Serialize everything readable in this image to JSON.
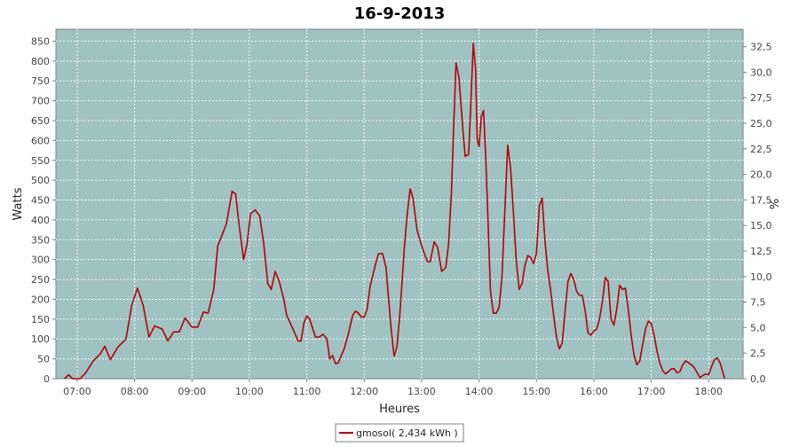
{
  "chart_data": {
    "type": "line",
    "title": "16-9-2013",
    "xlabel": "Heures",
    "ylabel": "Watts",
    "y2label": "%",
    "grid": true,
    "colors": {
      "plot_bg": "#9fc2c2",
      "line": "#b80000",
      "grid": "#ffffff"
    },
    "xlim": [
      6.63,
      18.6
    ],
    "ylim": [
      0,
      880
    ],
    "y2lim": [
      0,
      34.2
    ],
    "x_ticks": [
      {
        "value": 7,
        "label": "07:00"
      },
      {
        "value": 8,
        "label": "08:00"
      },
      {
        "value": 9,
        "label": "09:00"
      },
      {
        "value": 10,
        "label": "10:00"
      },
      {
        "value": 11,
        "label": "11:00"
      },
      {
        "value": 12,
        "label": "12:00"
      },
      {
        "value": 13,
        "label": "13:00"
      },
      {
        "value": 14,
        "label": "14:00"
      },
      {
        "value": 15,
        "label": "15:00"
      },
      {
        "value": 16,
        "label": "16:00"
      },
      {
        "value": 17,
        "label": "17:00"
      },
      {
        "value": 18,
        "label": "18:00"
      }
    ],
    "y_ticks": [
      0,
      50,
      100,
      150,
      200,
      250,
      300,
      350,
      400,
      450,
      500,
      550,
      600,
      650,
      700,
      750,
      800,
      850
    ],
    "y2_ticks": [
      "0,0",
      "2,5",
      "5,0",
      "7,5",
      "10,0",
      "12,5",
      "15,0",
      "17,5",
      "20,0",
      "22,5",
      "25,0",
      "27,5",
      "30,0",
      "32,5"
    ],
    "legend": {
      "position": "bottom-center",
      "label": "gmosol( 2,434 kWh )"
    },
    "series": [
      {
        "name": "gmosol( 2,434 kWh )",
        "points": [
          [
            6.78,
            0
          ],
          [
            6.85,
            10
          ],
          [
            6.92,
            0
          ],
          [
            7.05,
            0
          ],
          [
            7.15,
            15
          ],
          [
            7.28,
            45
          ],
          [
            7.4,
            62
          ],
          [
            7.48,
            82
          ],
          [
            7.58,
            48
          ],
          [
            7.7,
            78
          ],
          [
            7.85,
            100
          ],
          [
            7.95,
            185
          ],
          [
            8.05,
            228
          ],
          [
            8.15,
            185
          ],
          [
            8.25,
            105
          ],
          [
            8.35,
            133
          ],
          [
            8.48,
            125
          ],
          [
            8.58,
            95
          ],
          [
            8.68,
            118
          ],
          [
            8.78,
            118
          ],
          [
            8.88,
            153
          ],
          [
            9.0,
            130
          ],
          [
            9.1,
            130
          ],
          [
            9.2,
            168
          ],
          [
            9.28,
            165
          ],
          [
            9.38,
            225
          ],
          [
            9.45,
            335
          ],
          [
            9.52,
            360
          ],
          [
            9.6,
            390
          ],
          [
            9.7,
            472
          ],
          [
            9.76,
            465
          ],
          [
            9.82,
            388
          ],
          [
            9.9,
            300
          ],
          [
            9.96,
            340
          ],
          [
            10.02,
            415
          ],
          [
            10.1,
            425
          ],
          [
            10.18,
            410
          ],
          [
            10.25,
            340
          ],
          [
            10.32,
            240
          ],
          [
            10.38,
            225
          ],
          [
            10.45,
            270
          ],
          [
            10.52,
            245
          ],
          [
            10.6,
            200
          ],
          [
            10.65,
            160
          ],
          [
            10.75,
            128
          ],
          [
            10.85,
            95
          ],
          [
            10.9,
            95
          ],
          [
            10.95,
            140
          ],
          [
            11.0,
            158
          ],
          [
            11.05,
            150
          ],
          [
            11.15,
            105
          ],
          [
            11.22,
            105
          ],
          [
            11.28,
            112
          ],
          [
            11.35,
            100
          ],
          [
            11.4,
            50
          ],
          [
            11.45,
            58
          ],
          [
            11.5,
            38
          ],
          [
            11.55,
            40
          ],
          [
            11.65,
            75
          ],
          [
            11.72,
            110
          ],
          [
            11.8,
            160
          ],
          [
            11.85,
            170
          ],
          [
            11.9,
            165
          ],
          [
            11.95,
            155
          ],
          [
            12.0,
            155
          ],
          [
            12.05,
            175
          ],
          [
            12.1,
            230
          ],
          [
            12.15,
            260
          ],
          [
            12.2,
            290
          ],
          [
            12.25,
            315
          ],
          [
            12.32,
            315
          ],
          [
            12.38,
            280
          ],
          [
            12.42,
            210
          ],
          [
            12.47,
            125
          ],
          [
            12.52,
            57
          ],
          [
            12.57,
            80
          ],
          [
            12.62,
            160
          ],
          [
            12.7,
            330
          ],
          [
            12.75,
            415
          ],
          [
            12.8,
            478
          ],
          [
            12.85,
            455
          ],
          [
            12.92,
            375
          ],
          [
            13.0,
            335
          ],
          [
            13.05,
            315
          ],
          [
            13.1,
            295
          ],
          [
            13.15,
            295
          ],
          [
            13.22,
            345
          ],
          [
            13.28,
            330
          ],
          [
            13.35,
            270
          ],
          [
            13.42,
            280
          ],
          [
            13.47,
            340
          ],
          [
            13.52,
            470
          ],
          [
            13.56,
            640
          ],
          [
            13.6,
            795
          ],
          [
            13.65,
            760
          ],
          [
            13.72,
            625
          ],
          [
            13.76,
            560
          ],
          [
            13.82,
            565
          ],
          [
            13.86,
            700
          ],
          [
            13.9,
            845
          ],
          [
            13.94,
            780
          ],
          [
            13.97,
            600
          ],
          [
            14.0,
            585
          ],
          [
            14.04,
            660
          ],
          [
            14.08,
            675
          ],
          [
            14.12,
            550
          ],
          [
            14.16,
            385
          ],
          [
            14.2,
            220
          ],
          [
            14.25,
            165
          ],
          [
            14.3,
            165
          ],
          [
            14.35,
            180
          ],
          [
            14.4,
            255
          ],
          [
            14.45,
            425
          ],
          [
            14.5,
            588
          ],
          [
            14.55,
            530
          ],
          [
            14.6,
            415
          ],
          [
            14.65,
            295
          ],
          [
            14.7,
            225
          ],
          [
            14.75,
            240
          ],
          [
            14.8,
            285
          ],
          [
            14.85,
            310
          ],
          [
            14.9,
            305
          ],
          [
            14.95,
            290
          ],
          [
            15.0,
            315
          ],
          [
            15.05,
            435
          ],
          [
            15.1,
            455
          ],
          [
            15.15,
            345
          ],
          [
            15.2,
            270
          ],
          [
            15.25,
            220
          ],
          [
            15.3,
            160
          ],
          [
            15.35,
            105
          ],
          [
            15.4,
            75
          ],
          [
            15.45,
            90
          ],
          [
            15.5,
            170
          ],
          [
            15.55,
            245
          ],
          [
            15.6,
            265
          ],
          [
            15.65,
            250
          ],
          [
            15.7,
            220
          ],
          [
            15.75,
            210
          ],
          [
            15.8,
            210
          ],
          [
            15.85,
            170
          ],
          [
            15.9,
            115
          ],
          [
            15.95,
            110
          ],
          [
            16.0,
            120
          ],
          [
            16.05,
            125
          ],
          [
            16.1,
            150
          ],
          [
            16.15,
            195
          ],
          [
            16.2,
            255
          ],
          [
            16.25,
            245
          ],
          [
            16.3,
            150
          ],
          [
            16.35,
            135
          ],
          [
            16.4,
            175
          ],
          [
            16.45,
            235
          ],
          [
            16.5,
            225
          ],
          [
            16.55,
            228
          ],
          [
            16.6,
            175
          ],
          [
            16.65,
            110
          ],
          [
            16.7,
            60
          ],
          [
            16.75,
            35
          ],
          [
            16.8,
            45
          ],
          [
            16.85,
            85
          ],
          [
            16.9,
            125
          ],
          [
            16.95,
            145
          ],
          [
            17.0,
            140
          ],
          [
            17.05,
            110
          ],
          [
            17.1,
            70
          ],
          [
            17.15,
            40
          ],
          [
            17.2,
            20
          ],
          [
            17.25,
            12
          ],
          [
            17.3,
            18
          ],
          [
            17.35,
            25
          ],
          [
            17.4,
            25
          ],
          [
            17.45,
            15
          ],
          [
            17.5,
            18
          ],
          [
            17.55,
            35
          ],
          [
            17.6,
            45
          ],
          [
            17.65,
            40
          ],
          [
            17.7,
            35
          ],
          [
            17.75,
            28
          ],
          [
            17.8,
            15
          ],
          [
            17.85,
            3
          ],
          [
            17.9,
            8
          ],
          [
            17.95,
            12
          ],
          [
            18.0,
            10
          ],
          [
            18.05,
            30
          ],
          [
            18.1,
            48
          ],
          [
            18.15,
            52
          ],
          [
            18.2,
            40
          ],
          [
            18.25,
            15
          ],
          [
            18.28,
            0
          ]
        ]
      }
    ]
  }
}
